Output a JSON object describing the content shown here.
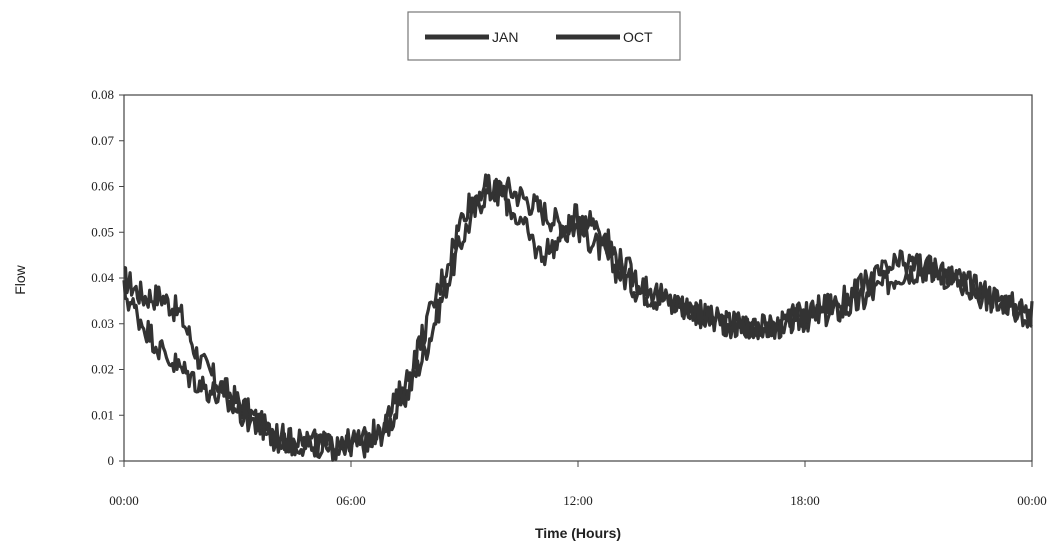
{
  "chart_data": {
    "type": "line",
    "xlabel": "Time (Hours)",
    "ylabel": "Flow",
    "ylim": [
      0,
      0.08
    ],
    "yticks": [
      "0",
      "0.01",
      "0.02",
      "0.03",
      "0.04",
      "0.05",
      "0.06",
      "0.07",
      "0.08"
    ],
    "xticks": [
      "00:00",
      "06:00",
      "12:00",
      "18:00",
      "00:00"
    ],
    "xlim_hours": [
      0,
      24
    ],
    "grid": false,
    "legend_position": "top-center",
    "line_color": "#333333",
    "series": [
      {
        "name": "JAN",
        "x_hours": [
          0,
          0.5,
          1,
          1.5,
          2,
          2.5,
          3,
          3.5,
          4,
          4.5,
          5,
          5.5,
          6,
          6.5,
          7,
          7.5,
          8,
          8.5,
          9,
          9.5,
          10,
          10.5,
          11,
          11.5,
          12,
          12.5,
          13,
          13.5,
          14,
          14.5,
          15,
          15.5,
          16,
          16.5,
          17,
          17.5,
          18,
          18.5,
          19,
          19.5,
          20,
          20.5,
          21,
          21.5,
          22,
          22.5,
          23,
          23.5,
          24
        ],
        "values": [
          0.04,
          0.036,
          0.036,
          0.032,
          0.022,
          0.017,
          0.013,
          0.009,
          0.005,
          0.004,
          0.004,
          0.003,
          0.003,
          0.004,
          0.008,
          0.015,
          0.025,
          0.038,
          0.05,
          0.058,
          0.06,
          0.058,
          0.055,
          0.052,
          0.051,
          0.047,
          0.042,
          0.038,
          0.036,
          0.035,
          0.033,
          0.031,
          0.03,
          0.03,
          0.029,
          0.03,
          0.031,
          0.032,
          0.033,
          0.035,
          0.038,
          0.041,
          0.042,
          0.042,
          0.04,
          0.038,
          0.036,
          0.034,
          0.032
        ]
      },
      {
        "name": "OCT",
        "x_hours": [
          0,
          0.5,
          1,
          1.5,
          2,
          2.5,
          3,
          3.5,
          4,
          4.5,
          5,
          5.5,
          6,
          6.5,
          7,
          7.5,
          8,
          8.5,
          9,
          9.5,
          10,
          10.5,
          11,
          11.5,
          12,
          12.5,
          13,
          13.5,
          14,
          14.5,
          15,
          15.5,
          16,
          16.5,
          17,
          17.5,
          18,
          18.5,
          19,
          19.5,
          20,
          20.5,
          21,
          21.5,
          22,
          22.5,
          23,
          23.5,
          24
        ],
        "values": [
          0.037,
          0.03,
          0.024,
          0.02,
          0.017,
          0.014,
          0.011,
          0.008,
          0.006,
          0.004,
          0.004,
          0.003,
          0.004,
          0.005,
          0.01,
          0.018,
          0.03,
          0.042,
          0.055,
          0.06,
          0.058,
          0.052,
          0.045,
          0.048,
          0.054,
          0.052,
          0.045,
          0.04,
          0.037,
          0.034,
          0.033,
          0.031,
          0.03,
          0.029,
          0.029,
          0.031,
          0.032,
          0.034,
          0.035,
          0.038,
          0.041,
          0.043,
          0.043,
          0.041,
          0.039,
          0.037,
          0.035,
          0.033,
          0.032
        ]
      }
    ]
  }
}
